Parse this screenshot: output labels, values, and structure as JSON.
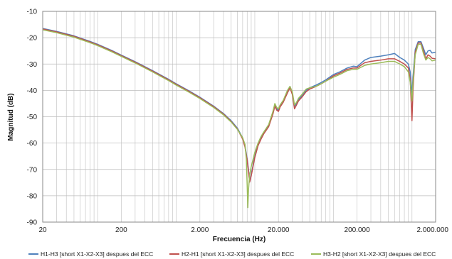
{
  "chart_data": {
    "type": "line",
    "title": "",
    "xlabel": "Frecuencia (Hz)",
    "ylabel": "Magnitud (dB)",
    "x_scale": "log",
    "xlim": [
      20,
      2000000
    ],
    "ylim": [
      -90,
      -10
    ],
    "x_ticks": [
      {
        "value": 20,
        "label": "20"
      },
      {
        "value": 200,
        "label": "200"
      },
      {
        "value": 2000,
        "label": "2.000"
      },
      {
        "value": 20000,
        "label": "20.000"
      },
      {
        "value": 200000,
        "label": "200.000"
      },
      {
        "value": 2000000,
        "label": "2.000.000"
      }
    ],
    "y_ticks": [
      {
        "value": -10,
        "label": "-10"
      },
      {
        "value": -20,
        "label": "-20"
      },
      {
        "value": -30,
        "label": "-30"
      },
      {
        "value": -40,
        "label": "-40"
      },
      {
        "value": -50,
        "label": "-50"
      },
      {
        "value": -60,
        "label": "-60"
      },
      {
        "value": -70,
        "label": "-70"
      },
      {
        "value": -80,
        "label": "-80"
      },
      {
        "value": -90,
        "label": "-90"
      }
    ],
    "grid": true,
    "legend_position": "bottom",
    "series": [
      {
        "name": "H1-H3 [short X1-X2-X3] despues del ECC",
        "color": "#4f81bd",
        "points": [
          [
            20,
            -16.5
          ],
          [
            30,
            -17.6
          ],
          [
            50,
            -19.3
          ],
          [
            80,
            -21.4
          ],
          [
            100,
            -22.5
          ],
          [
            150,
            -24.8
          ],
          [
            200,
            -26.6
          ],
          [
            300,
            -29.1
          ],
          [
            500,
            -32.5
          ],
          [
            800,
            -35.8
          ],
          [
            1000,
            -37.5
          ],
          [
            1500,
            -40.4
          ],
          [
            2000,
            -42.6
          ],
          [
            3000,
            -46.0
          ],
          [
            4000,
            -48.8
          ],
          [
            5000,
            -51.5
          ],
          [
            6000,
            -54.3
          ],
          [
            7000,
            -58.0
          ],
          [
            7500,
            -61.0
          ],
          [
            8000,
            -66.0
          ],
          [
            8300,
            -70.0
          ],
          [
            8600,
            -74.5
          ],
          [
            9000,
            -72.0
          ],
          [
            10000,
            -65.0
          ],
          [
            11000,
            -60.5
          ],
          [
            12000,
            -58.0
          ],
          [
            13000,
            -56.0
          ],
          [
            15000,
            -53.2
          ],
          [
            17000,
            -48.5
          ],
          [
            18000,
            -45.5
          ],
          [
            19000,
            -47.0
          ],
          [
            20000,
            -47.5
          ],
          [
            21000,
            -45.8
          ],
          [
            23000,
            -44.0
          ],
          [
            26000,
            -40.5
          ],
          [
            28000,
            -38.5
          ],
          [
            30000,
            -41.0
          ],
          [
            32000,
            -46.0
          ],
          [
            34000,
            -45.0
          ],
          [
            36000,
            -43.5
          ],
          [
            40000,
            -42.0
          ],
          [
            45000,
            -40.0
          ],
          [
            50000,
            -39.0
          ],
          [
            60000,
            -38.0
          ],
          [
            70000,
            -37.0
          ],
          [
            80000,
            -36.0
          ],
          [
            100000,
            -34.0
          ],
          [
            120000,
            -33.0
          ],
          [
            150000,
            -31.5
          ],
          [
            180000,
            -30.8
          ],
          [
            200000,
            -31.0
          ],
          [
            250000,
            -28.5
          ],
          [
            300000,
            -27.5
          ],
          [
            400000,
            -27.0
          ],
          [
            500000,
            -26.5
          ],
          [
            600000,
            -26.0
          ],
          [
            700000,
            -27.5
          ],
          [
            800000,
            -28.5
          ],
          [
            900000,
            -30.0
          ],
          [
            950000,
            -33.0
          ],
          [
            1000000,
            -42.0
          ],
          [
            1030000,
            -35.0
          ],
          [
            1100000,
            -24.5
          ],
          [
            1200000,
            -21.5
          ],
          [
            1300000,
            -21.5
          ],
          [
            1400000,
            -24.0
          ],
          [
            1500000,
            -26.5
          ],
          [
            1600000,
            -25.0
          ],
          [
            1700000,
            -24.8
          ],
          [
            1800000,
            -25.8
          ],
          [
            2000000,
            -25.5
          ]
        ]
      },
      {
        "name": "H2-H1 [short X1-X2-X3] despues del ECC",
        "color": "#c0504d",
        "points": [
          [
            20,
            -16.7
          ],
          [
            30,
            -17.8
          ],
          [
            50,
            -19.5
          ],
          [
            80,
            -21.6
          ],
          [
            100,
            -22.7
          ],
          [
            150,
            -25.0
          ],
          [
            200,
            -26.8
          ],
          [
            300,
            -29.3
          ],
          [
            500,
            -32.7
          ],
          [
            800,
            -36.0
          ],
          [
            1000,
            -37.7
          ],
          [
            1500,
            -40.6
          ],
          [
            2000,
            -42.8
          ],
          [
            3000,
            -46.2
          ],
          [
            4000,
            -49.0
          ],
          [
            5000,
            -51.8
          ],
          [
            6000,
            -54.6
          ],
          [
            7000,
            -58.5
          ],
          [
            7500,
            -61.5
          ],
          [
            8000,
            -66.5
          ],
          [
            8300,
            -70.5
          ],
          [
            8600,
            -74.8
          ],
          [
            9000,
            -72.5
          ],
          [
            10000,
            -65.5
          ],
          [
            11000,
            -61.0
          ],
          [
            12000,
            -58.5
          ],
          [
            13000,
            -56.5
          ],
          [
            15000,
            -53.8
          ],
          [
            17000,
            -49.0
          ],
          [
            18000,
            -46.0
          ],
          [
            19000,
            -47.5
          ],
          [
            20000,
            -48.0
          ],
          [
            21000,
            -46.3
          ],
          [
            23000,
            -44.5
          ],
          [
            26000,
            -41.0
          ],
          [
            28000,
            -39.0
          ],
          [
            30000,
            -41.5
          ],
          [
            32000,
            -47.0
          ],
          [
            34000,
            -45.5
          ],
          [
            36000,
            -44.0
          ],
          [
            40000,
            -42.5
          ],
          [
            45000,
            -40.5
          ],
          [
            50000,
            -39.5
          ],
          [
            60000,
            -38.5
          ],
          [
            70000,
            -37.5
          ],
          [
            80000,
            -36.5
          ],
          [
            100000,
            -34.5
          ],
          [
            120000,
            -33.5
          ],
          [
            150000,
            -32.0
          ],
          [
            180000,
            -31.5
          ],
          [
            200000,
            -31.5
          ],
          [
            250000,
            -29.5
          ],
          [
            300000,
            -29.0
          ],
          [
            400000,
            -28.5
          ],
          [
            500000,
            -28.0
          ],
          [
            600000,
            -28.0
          ],
          [
            700000,
            -29.0
          ],
          [
            800000,
            -30.0
          ],
          [
            900000,
            -31.5
          ],
          [
            950000,
            -36.0
          ],
          [
            1000000,
            -51.5
          ],
          [
            1030000,
            -40.0
          ],
          [
            1100000,
            -25.5
          ],
          [
            1200000,
            -22.0
          ],
          [
            1300000,
            -22.0
          ],
          [
            1400000,
            -25.0
          ],
          [
            1500000,
            -28.0
          ],
          [
            1600000,
            -26.5
          ],
          [
            1700000,
            -27.0
          ],
          [
            1800000,
            -27.8
          ],
          [
            2000000,
            -28.0
          ]
        ]
      },
      {
        "name": "H3-H2 [short X1-X2-X3] despues del ECC",
        "color": "#9bbb59",
        "points": [
          [
            20,
            -17.0
          ],
          [
            30,
            -18.1
          ],
          [
            50,
            -19.8
          ],
          [
            80,
            -21.9
          ],
          [
            100,
            -23.0
          ],
          [
            150,
            -25.3
          ],
          [
            200,
            -27.1
          ],
          [
            300,
            -29.6
          ],
          [
            500,
            -33.0
          ],
          [
            800,
            -36.3
          ],
          [
            1000,
            -38.0
          ],
          [
            1500,
            -40.9
          ],
          [
            2000,
            -43.1
          ],
          [
            3000,
            -46.5
          ],
          [
            4000,
            -49.3
          ],
          [
            5000,
            -52.0
          ],
          [
            6000,
            -54.8
          ],
          [
            7000,
            -58.0
          ],
          [
            7500,
            -60.5
          ],
          [
            7800,
            -66.0
          ],
          [
            8000,
            -76.0
          ],
          [
            8150,
            -84.5
          ],
          [
            8300,
            -78.0
          ],
          [
            8600,
            -72.0
          ],
          [
            9000,
            -69.0
          ],
          [
            10000,
            -63.5
          ],
          [
            11000,
            -60.0
          ],
          [
            12000,
            -57.5
          ],
          [
            13000,
            -55.8
          ],
          [
            15000,
            -53.0
          ],
          [
            17000,
            -48.0
          ],
          [
            18000,
            -45.0
          ],
          [
            19000,
            -46.5
          ],
          [
            20000,
            -47.0
          ],
          [
            21000,
            -45.5
          ],
          [
            23000,
            -43.8
          ],
          [
            26000,
            -40.0
          ],
          [
            28000,
            -38.5
          ],
          [
            30000,
            -40.5
          ],
          [
            32000,
            -45.5
          ],
          [
            34000,
            -44.5
          ],
          [
            36000,
            -43.0
          ],
          [
            40000,
            -41.5
          ],
          [
            45000,
            -39.5
          ],
          [
            50000,
            -39.0
          ],
          [
            60000,
            -38.5
          ],
          [
            70000,
            -37.5
          ],
          [
            80000,
            -36.5
          ],
          [
            100000,
            -35.0
          ],
          [
            120000,
            -34.0
          ],
          [
            150000,
            -32.5
          ],
          [
            180000,
            -32.0
          ],
          [
            200000,
            -32.0
          ],
          [
            250000,
            -30.5
          ],
          [
            300000,
            -30.0
          ],
          [
            400000,
            -29.5
          ],
          [
            500000,
            -29.0
          ],
          [
            600000,
            -29.0
          ],
          [
            700000,
            -30.0
          ],
          [
            800000,
            -31.0
          ],
          [
            900000,
            -33.0
          ],
          [
            950000,
            -37.0
          ],
          [
            1000000,
            -44.0
          ],
          [
            1030000,
            -37.0
          ],
          [
            1100000,
            -26.5
          ],
          [
            1200000,
            -22.5
          ],
          [
            1300000,
            -22.5
          ],
          [
            1400000,
            -26.0
          ],
          [
            1500000,
            -28.5
          ],
          [
            1600000,
            -27.5
          ],
          [
            1700000,
            -28.0
          ],
          [
            1800000,
            -28.8
          ],
          [
            2000000,
            -28.5
          ]
        ]
      }
    ]
  }
}
